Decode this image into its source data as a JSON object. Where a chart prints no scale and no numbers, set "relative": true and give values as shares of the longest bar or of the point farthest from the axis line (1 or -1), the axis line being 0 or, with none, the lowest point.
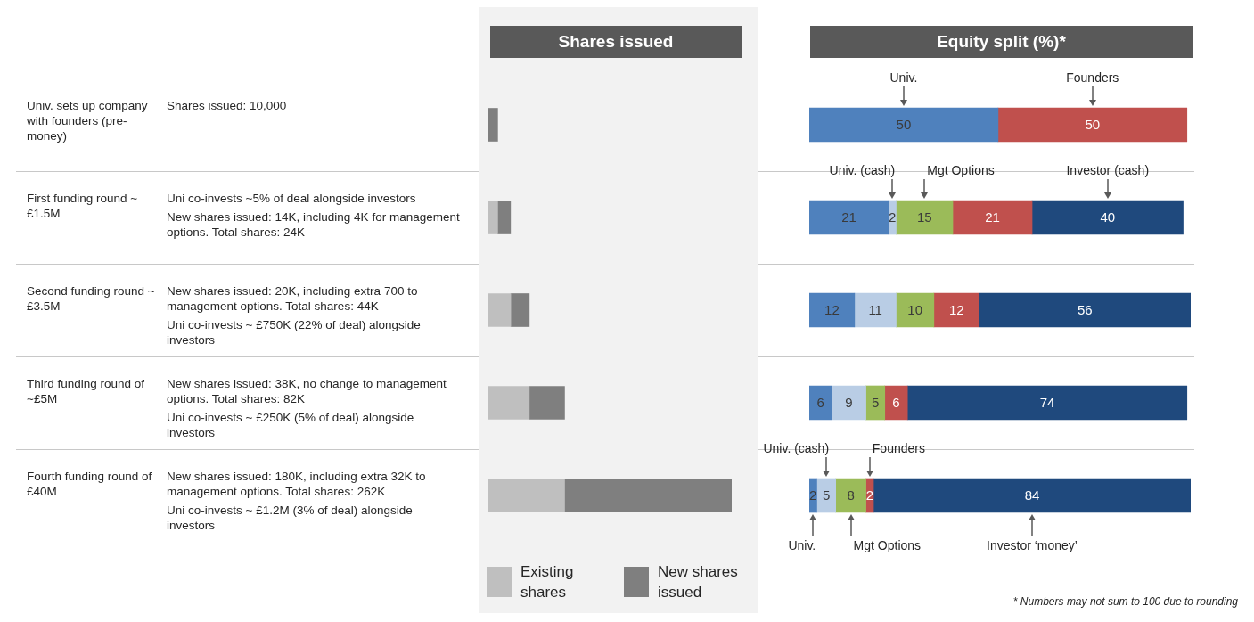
{
  "chart_data": [
    {
      "type": "bar",
      "orientation": "horizontal",
      "stacked": true,
      "relative": true,
      "title": "Shares issued",
      "legend": "bottom",
      "categories": [
        "Univ. sets up company with founders (pre-money)",
        "First funding round ~ £1.5M",
        "Second funding round ~ £3.5M",
        "Third funding round of ~£5M",
        "Fourth funding round of £40M"
      ],
      "series": [
        {
          "name": "Existing shares",
          "color": "#bfbfbf",
          "values": [
            null,
            0.038,
            0.092,
            0.168,
            0.313
          ]
        },
        {
          "name": "New shares issued",
          "color": "#7f7f7f",
          "values": [
            0.038,
            0.053,
            0.076,
            0.145,
            0.687
          ]
        }
      ],
      "annotations": [
        "Shares issued: 10,000",
        "Uni co-invests ~5% of deal alongside investors\nNew shares issued: 14K, including 4K for management options. Total shares: 24K",
        "New shares issued: 20K, including extra 700 to management options. Total shares: 44K\nUni co-invests ~ £750K  (22% of deal) alongside investors",
        "New shares issued: 38K, no change to management options. Total shares: 82K\nUni co-invests ~ £250K  (5% of deal) alongside investors",
        "New shares issued: 180K, including extra 32K to management options. Total shares: 262K\nUni co-invests ~ £1.2M  (3% of deal) alongside investors"
      ]
    },
    {
      "type": "bar",
      "orientation": "horizontal",
      "stacked": true,
      "title": "Equity split (%)*",
      "data_labels": true,
      "categories": [
        null,
        null,
        null,
        null,
        null
      ],
      "series": [
        {
          "name": "Univ.",
          "color": "#4f81bd",
          "values": [
            50,
            21,
            12,
            6,
            2
          ]
        },
        {
          "name": "Univ. (cash)",
          "color": "#b9cde5",
          "values": [
            null,
            2,
            11,
            9,
            5
          ]
        },
        {
          "name": "Mgt Options",
          "color": "#9bbb59",
          "values": [
            null,
            15,
            10,
            5,
            8
          ]
        },
        {
          "name": "Founders",
          "color": "#c0504d",
          "values": [
            50,
            21,
            12,
            6,
            2
          ]
        },
        {
          "name": "Investor (cash)",
          "color": "#1f497d",
          "values": [
            null,
            40,
            56,
            74,
            84
          ]
        }
      ],
      "annotations": [
        "Univ.",
        "Univ. (cash)",
        "Mgt Options",
        "Founders",
        "Investor ‘money’",
        "* Numbers may not sum to 100 due to rounding"
      ]
    }
  ]
}
